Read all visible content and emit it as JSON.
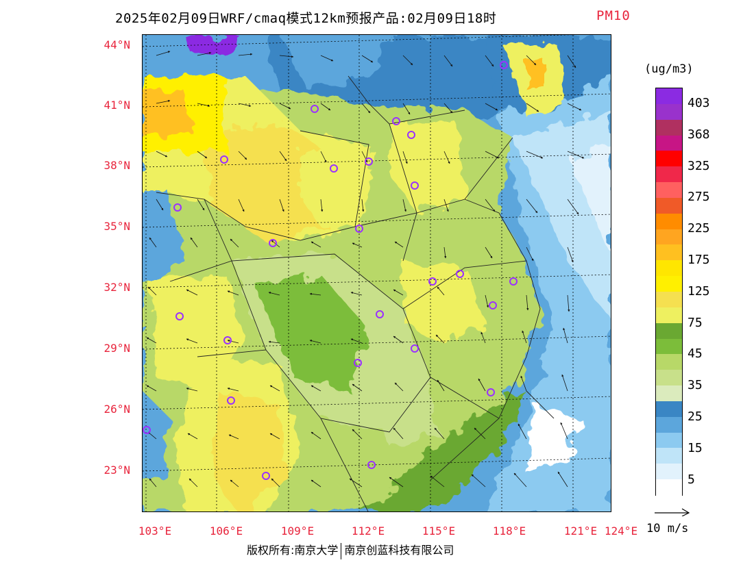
{
  "title": {
    "text": "2025年02月09日WRF/cmaq模式12km预报产品:02月09日18时",
    "variable": "PM10"
  },
  "map": {
    "lat_labels": [
      "44°N",
      "41°N",
      "38°N",
      "35°N",
      "32°N",
      "29°N",
      "26°N",
      "23°N"
    ],
    "lon_labels": [
      "103°E",
      "106°E",
      "109°E",
      "112°E",
      "115°E",
      "118°E",
      "121°E",
      "124°E"
    ],
    "colors": {
      "station_marker": "#9b30ff",
      "label_red": "#e8243c"
    }
  },
  "colorbar": {
    "unit": "(ug/m3)",
    "ticks": [
      "403",
      "368",
      "325",
      "275",
      "225",
      "175",
      "125",
      "75",
      "45",
      "35",
      "25",
      "15",
      "5"
    ],
    "colors": [
      "#8b2be2",
      "#9932cc",
      "#b03060",
      "#c71585",
      "#ff0000",
      "#f0284a",
      "#ff6060",
      "#f05a28",
      "#ff8c00",
      "#ffa520",
      "#ffc020",
      "#ffe600",
      "#fff000",
      "#f5e050",
      "#eef060",
      "#6aa832",
      "#7cbd3a",
      "#b8d868",
      "#c8e08a",
      "#dbebbd",
      "#3a86c4",
      "#5ca6dc",
      "#8ccaf0",
      "#bfe4f8",
      "#e2f2fc",
      "#ffffff"
    ]
  },
  "wind_reference": {
    "label": "10 m/s"
  },
  "footer": {
    "left": "版权所有:南京大学",
    "right": "南京创蓝科技有限公司"
  }
}
